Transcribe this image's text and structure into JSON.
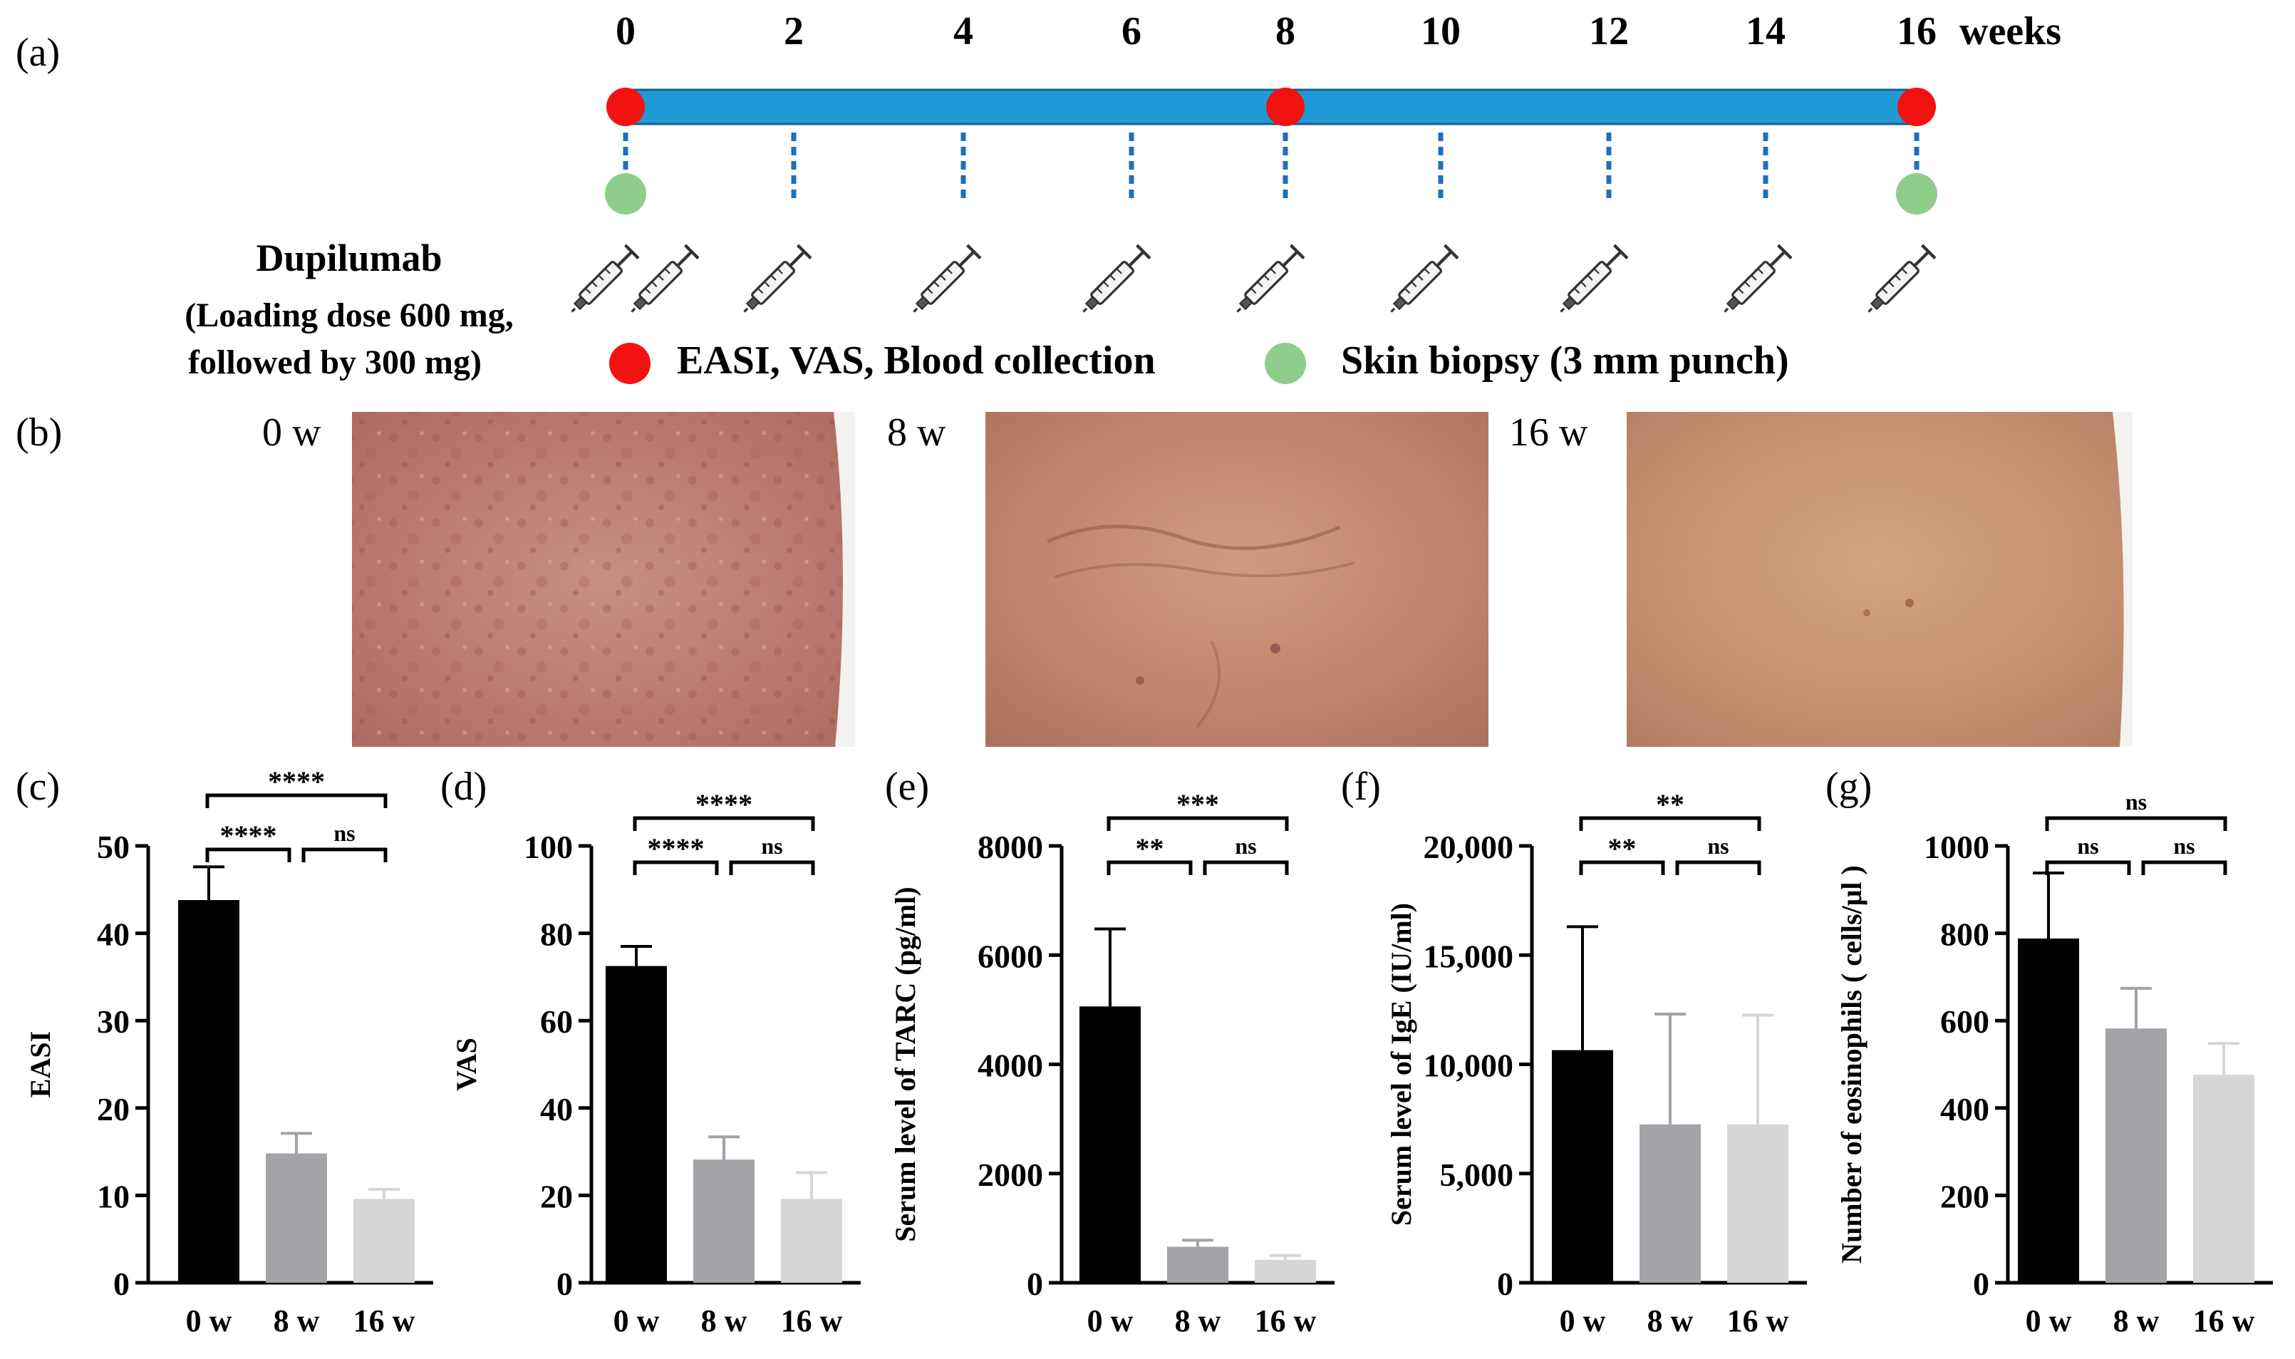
{
  "panels": {
    "a": "(a)",
    "b": "(b)",
    "c": "(c)",
    "d": "(d)",
    "e": "(e)",
    "f": "(f)",
    "g": "(g)"
  },
  "timeline": {
    "weeks": [
      "0",
      "2",
      "4",
      "6",
      "8",
      "10",
      "12",
      "14",
      "16"
    ],
    "unit": "weeks",
    "bar_color": "#1f9ad6",
    "red_color": "#f21212",
    "green_color": "#8fce8a",
    "red_dot_weeks": [
      "0",
      "8",
      "16"
    ],
    "green_dot_weeks": [
      "0",
      "16"
    ],
    "syringe_icon": "syringe-icon",
    "drug_title": "Dupilumab",
    "drug_dose_line1": "(Loading dose 600 mg,",
    "drug_dose_line2": "followed by 300 mg)",
    "legend_red": "EASI, VAS, Blood collection",
    "legend_green": "Skin biopsy (3 mm punch)"
  },
  "photos": [
    {
      "label": "0 w"
    },
    {
      "label": "8 w"
    },
    {
      "label": "16 w"
    }
  ],
  "chart_data": [
    {
      "panel": "(c)",
      "type": "bar",
      "categories": [
        "0 w",
        "8 w",
        "16 w"
      ],
      "values": [
        43.8,
        14.8,
        9.6
      ],
      "errors": [
        3.8,
        2.3,
        1.1
      ],
      "colors": [
        "#000000",
        "#a3a3a8",
        "#d6d6d6"
      ],
      "ylabel": "EASI",
      "ylim": [
        0,
        50
      ],
      "yticks": [
        "0",
        "10",
        "20",
        "30",
        "40",
        "50"
      ],
      "sig": [
        {
          "from": 0,
          "to": 1,
          "label": "****"
        },
        {
          "from": 1,
          "to": 2,
          "label": "ns"
        },
        {
          "from": 0,
          "to": 2,
          "label": "****"
        }
      ]
    },
    {
      "panel": "(d)",
      "type": "bar",
      "categories": [
        "0 w",
        "8 w",
        "16 w"
      ],
      "values": [
        72.5,
        28.2,
        19.2
      ],
      "errors": [
        4.5,
        5.2,
        6.0
      ],
      "colors": [
        "#000000",
        "#a3a3a8",
        "#d6d6d6"
      ],
      "ylabel": "VAS",
      "ylim": [
        0,
        100
      ],
      "yticks": [
        "0",
        "20",
        "40",
        "60",
        "80",
        "100"
      ],
      "sig": [
        {
          "from": 0,
          "to": 1,
          "label": "****"
        },
        {
          "from": 1,
          "to": 2,
          "label": "ns"
        },
        {
          "from": 0,
          "to": 2,
          "label": "****"
        }
      ]
    },
    {
      "panel": "(e)",
      "type": "bar",
      "categories": [
        "0 w",
        "8 w",
        "16 w"
      ],
      "values": [
        5060,
        660,
        420
      ],
      "errors": [
        1420,
        120,
        80
      ],
      "colors": [
        "#000000",
        "#a3a3a8",
        "#d6d6d6"
      ],
      "ylabel": "Serum level of TARC (pg/ml)",
      "ylim": [
        0,
        8000
      ],
      "yticks": [
        "0",
        "2000",
        "4000",
        "6000",
        "8000"
      ],
      "sig": [
        {
          "from": 0,
          "to": 1,
          "label": "**"
        },
        {
          "from": 1,
          "to": 2,
          "label": "ns"
        },
        {
          "from": 0,
          "to": 2,
          "label": "***"
        }
      ]
    },
    {
      "panel": "(f)",
      "type": "bar",
      "categories": [
        "0 w",
        "8 w",
        "16 w"
      ],
      "values": [
        10650,
        7250,
        7250
      ],
      "errors": [
        5650,
        5050,
        5000
      ],
      "colors": [
        "#000000",
        "#a3a3a8",
        "#d6d6d6"
      ],
      "ylabel": "Serum level of IgE (IU/ml)",
      "ylim": [
        0,
        20000
      ],
      "yticks": [
        "0",
        "5,000",
        "10,000",
        "15,000",
        "20,000"
      ],
      "sig": [
        {
          "from": 0,
          "to": 1,
          "label": "**"
        },
        {
          "from": 1,
          "to": 2,
          "label": "ns"
        },
        {
          "from": 0,
          "to": 2,
          "label": "**"
        }
      ]
    },
    {
      "panel": "(g)",
      "type": "bar",
      "categories": [
        "0 w",
        "8 w",
        "16 w"
      ],
      "values": [
        788,
        582,
        476
      ],
      "errors": [
        150,
        92,
        72
      ],
      "colors": [
        "#000000",
        "#a3a3a8",
        "#d6d6d6"
      ],
      "ylabel": "Number of eosinophils ( cells/μl )",
      "ylim": [
        0,
        1000
      ],
      "yticks": [
        "0",
        "200",
        "400",
        "600",
        "800",
        "1000"
      ],
      "sig": [
        {
          "from": 0,
          "to": 1,
          "label": "ns"
        },
        {
          "from": 1,
          "to": 2,
          "label": "ns"
        },
        {
          "from": 0,
          "to": 2,
          "label": "ns"
        }
      ]
    }
  ]
}
